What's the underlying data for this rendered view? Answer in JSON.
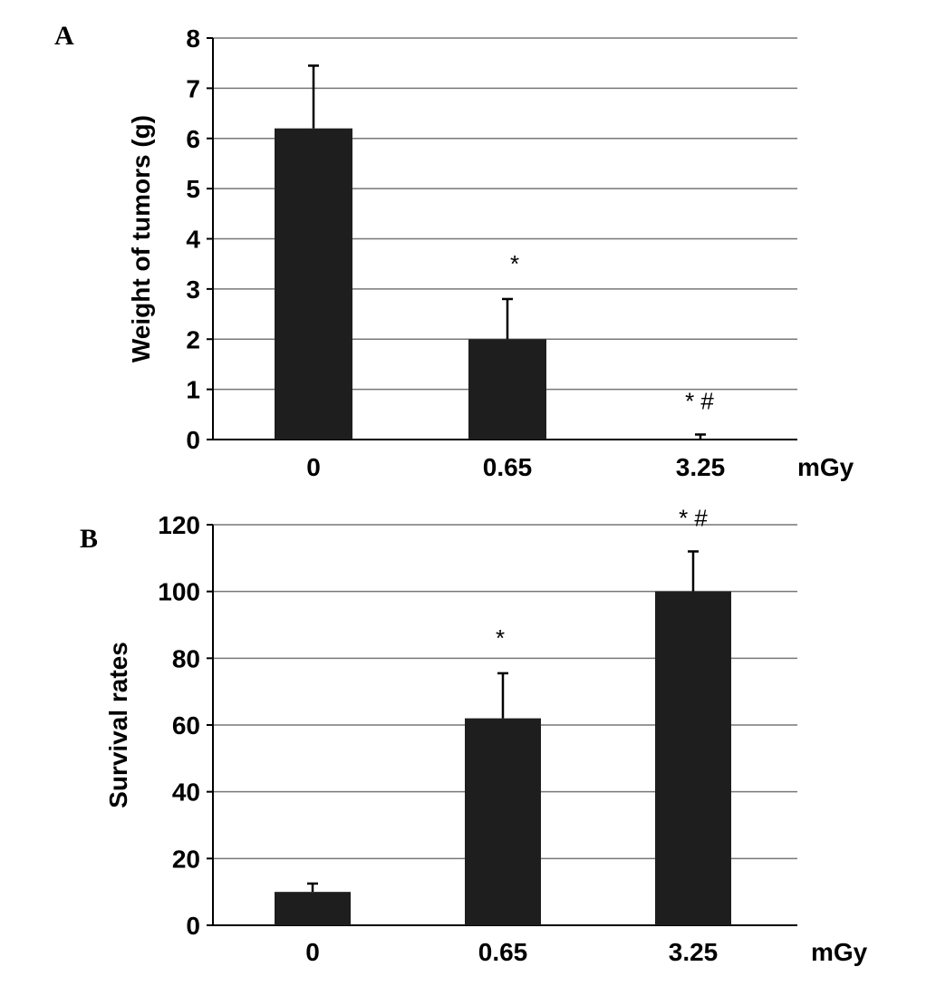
{
  "chart_data": [
    {
      "type": "bar",
      "panel": "A",
      "categories": [
        "0",
        "0.65",
        "3.25"
      ],
      "xunit": "mGy",
      "values": [
        6.2,
        2.0,
        0.0
      ],
      "errors": [
        1.25,
        0.8,
        0.1
      ],
      "annotations": [
        "",
        "*",
        "*   #"
      ],
      "ylabel": "Weight of tumors (g)",
      "ylim": [
        0,
        8
      ],
      "yticks": [
        "0",
        "1",
        "2",
        "3",
        "4",
        "5",
        "6",
        "7",
        "8"
      ],
      "grid": true,
      "bar_color": "#1e1e1e"
    },
    {
      "type": "bar",
      "panel": "B",
      "categories": [
        "0",
        "0.65",
        "3.25"
      ],
      "xunit": "mGy",
      "values": [
        10,
        62,
        100
      ],
      "errors": [
        2.5,
        13.5,
        12
      ],
      "annotations": [
        "",
        "*",
        "* #"
      ],
      "ylabel": "Survival rates",
      "ylim": [
        0,
        120
      ],
      "yticks": [
        "0",
        "20",
        "40",
        "60",
        "80",
        "100",
        "120"
      ],
      "grid": true,
      "bar_color": "#1e1e1e"
    }
  ]
}
